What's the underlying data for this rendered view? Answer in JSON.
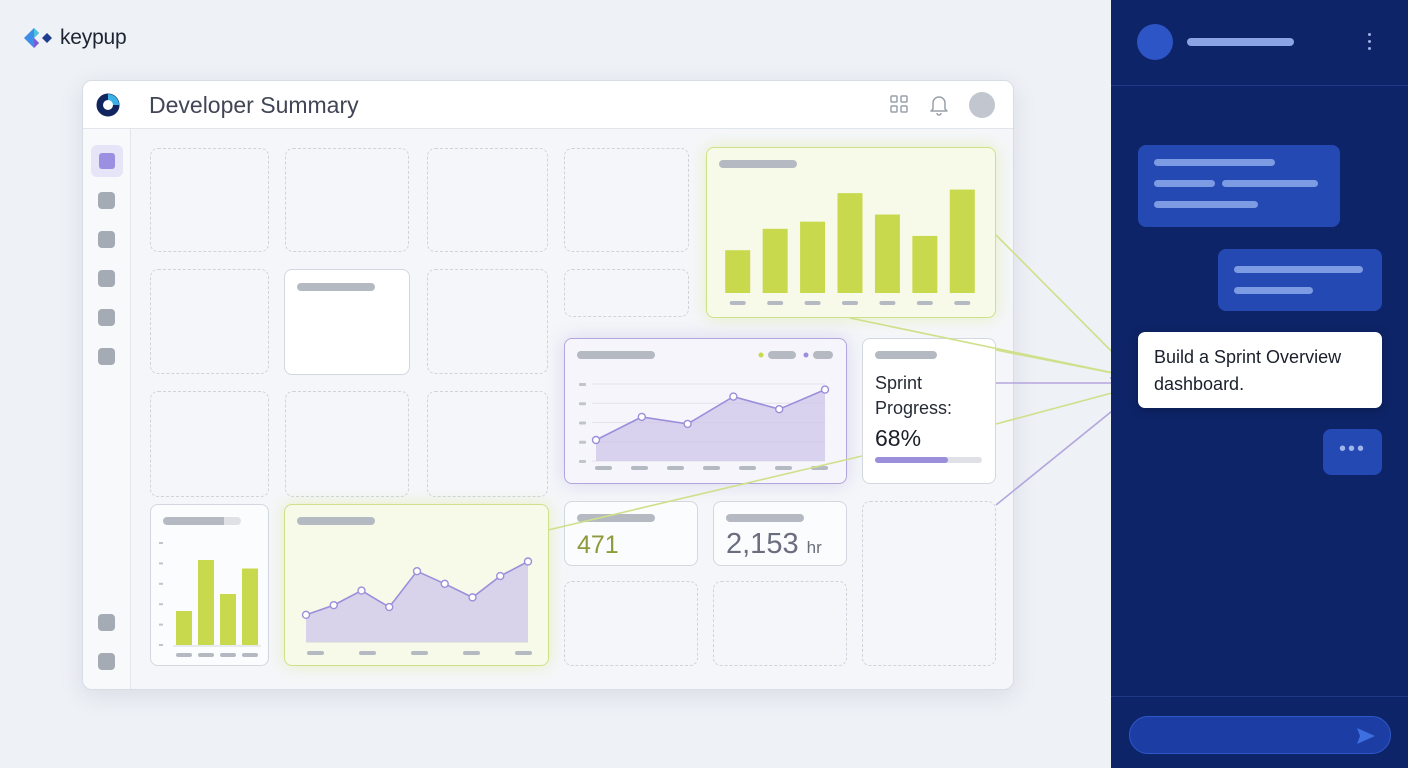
{
  "brand": {
    "name": "keypup"
  },
  "window": {
    "title": "Developer Summary"
  },
  "icons": {
    "app": "app-ring-icon",
    "grid": "grid-icon",
    "bell": "bell-icon",
    "send": "send-icon"
  },
  "widgets": {
    "sprint": {
      "label": "Sprint Progress:",
      "value": "68%",
      "progress": 0.68
    },
    "metric_count": {
      "value": "471"
    },
    "metric_hours": {
      "value": "2,153",
      "unit": "hr"
    }
  },
  "chat": {
    "prompt": "Build a Sprint Overview dashboard.",
    "typing": "•••"
  },
  "colors": {
    "lime": "#c8d94e",
    "purple": "#9b8edb",
    "chat_bg": "#0d2468",
    "bubble": "#2549b3"
  },
  "chart_data": [
    {
      "type": "bar",
      "name": "top-right-bar-chart",
      "values": [
        6,
        9,
        10,
        14,
        11,
        8,
        14.5
      ]
    },
    {
      "type": "area",
      "name": "middle-line-chart",
      "values": [
        3,
        6.3,
        5.3,
        9.2,
        7.4,
        10.2
      ]
    },
    {
      "type": "bar",
      "name": "small-bar-chart",
      "values": [
        2,
        5,
        3,
        4.5
      ]
    },
    {
      "type": "area",
      "name": "bottom-line-chart",
      "values": [
        2.8,
        3.8,
        5.3,
        3.6,
        7.3,
        6.0,
        4.6,
        6.8,
        8.3
      ]
    }
  ]
}
